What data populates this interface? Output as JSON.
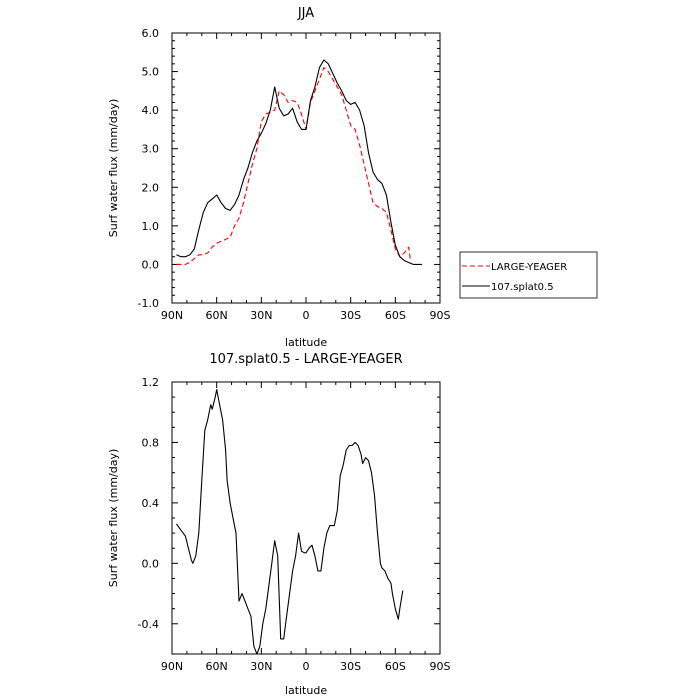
{
  "chart_data": [
    {
      "type": "line",
      "title": "JJA",
      "xlabel": "latitude",
      "ylabel": "Surf water flux (mm/day)",
      "xlim": [
        90,
        -90
      ],
      "ylim": [
        -1.0,
        6.0
      ],
      "xticks": [
        90,
        60,
        30,
        0,
        -30,
        -60,
        -90
      ],
      "xtick_labels": [
        "90N",
        "60N",
        "30N",
        "0",
        "30S",
        "60S",
        "90S"
      ],
      "yticks": [
        -1.0,
        0.0,
        1.0,
        2.0,
        3.0,
        4.0,
        5.0,
        6.0
      ],
      "ytick_labels": [
        "-1.0",
        "0.0",
        "1.0",
        "2.0",
        "3.0",
        "4.0",
        "5.0",
        "6.0"
      ],
      "legend_position": "outside-right",
      "series": [
        {
          "name": "LARGE-YEAGER",
          "color": "#ff0000",
          "dash": "dashed",
          "points": [
            [
              87,
              0.0
            ],
            [
              84,
              0.0
            ],
            [
              81,
              0.0
            ],
            [
              78,
              0.05
            ],
            [
              75,
              0.15
            ],
            [
              72,
              0.25
            ],
            [
              69,
              0.25
            ],
            [
              66,
              0.3
            ],
            [
              63,
              0.45
            ],
            [
              60,
              0.55
            ],
            [
              57,
              0.6
            ],
            [
              54,
              0.65
            ],
            [
              51,
              0.7
            ],
            [
              48,
              1.0
            ],
            [
              45,
              1.2
            ],
            [
              42,
              1.6
            ],
            [
              39,
              2.1
            ],
            [
              36,
              2.6
            ],
            [
              33,
              3.0
            ],
            [
              30,
              3.7
            ],
            [
              27,
              3.9
            ],
            [
              24,
              3.95
            ],
            [
              21,
              4.0
            ],
            [
              18,
              4.5
            ],
            [
              15,
              4.4
            ],
            [
              12,
              4.2
            ],
            [
              9,
              4.25
            ],
            [
              6,
              4.2
            ],
            [
              3,
              3.9
            ],
            [
              0,
              3.5
            ],
            [
              -3,
              4.2
            ],
            [
              -6,
              4.5
            ],
            [
              -9,
              4.8
            ],
            [
              -12,
              5.1
            ],
            [
              -15,
              5.0
            ],
            [
              -18,
              4.8
            ],
            [
              -21,
              4.6
            ],
            [
              -24,
              4.4
            ],
            [
              -27,
              4.0
            ],
            [
              -30,
              3.6
            ],
            [
              -33,
              3.5
            ],
            [
              -36,
              3.1
            ],
            [
              -39,
              2.6
            ],
            [
              -42,
              2.1
            ],
            [
              -45,
              1.6
            ],
            [
              -48,
              1.5
            ],
            [
              -51,
              1.45
            ],
            [
              -54,
              1.35
            ],
            [
              -57,
              0.9
            ],
            [
              -60,
              0.4
            ],
            [
              -63,
              0.2
            ],
            [
              -66,
              0.3
            ],
            [
              -68,
              0.4
            ],
            [
              -69,
              0.45
            ],
            [
              -70,
              0.15
            ]
          ]
        },
        {
          "name": "107.splat0.5",
          "color": "#000000",
          "dash": "solid",
          "points": [
            [
              87,
              0.25
            ],
            [
              84,
              0.2
            ],
            [
              81,
              0.2
            ],
            [
              78,
              0.25
            ],
            [
              75,
              0.4
            ],
            [
              72,
              0.9
            ],
            [
              69,
              1.35
            ],
            [
              66,
              1.6
            ],
            [
              63,
              1.7
            ],
            [
              60,
              1.8
            ],
            [
              57,
              1.6
            ],
            [
              54,
              1.45
            ],
            [
              51,
              1.4
            ],
            [
              48,
              1.55
            ],
            [
              45,
              1.8
            ],
            [
              42,
              2.2
            ],
            [
              39,
              2.5
            ],
            [
              36,
              2.9
            ],
            [
              33,
              3.2
            ],
            [
              30,
              3.4
            ],
            [
              27,
              3.65
            ],
            [
              24,
              4.0
            ],
            [
              21,
              4.6
            ],
            [
              18,
              4.05
            ],
            [
              15,
              3.85
            ],
            [
              12,
              3.9
            ],
            [
              9,
              4.05
            ],
            [
              6,
              3.7
            ],
            [
              3,
              3.5
            ],
            [
              0,
              3.5
            ],
            [
              -3,
              4.25
            ],
            [
              -6,
              4.6
            ],
            [
              -9,
              5.1
            ],
            [
              -12,
              5.3
            ],
            [
              -15,
              5.2
            ],
            [
              -18,
              4.95
            ],
            [
              -21,
              4.7
            ],
            [
              -24,
              4.5
            ],
            [
              -27,
              4.25
            ],
            [
              -30,
              4.15
            ],
            [
              -33,
              4.2
            ],
            [
              -36,
              4.0
            ],
            [
              -39,
              3.6
            ],
            [
              -42,
              2.9
            ],
            [
              -45,
              2.4
            ],
            [
              -48,
              2.2
            ],
            [
              -51,
              2.1
            ],
            [
              -54,
              1.8
            ],
            [
              -57,
              1.1
            ],
            [
              -60,
              0.5
            ],
            [
              -63,
              0.2
            ],
            [
              -66,
              0.1
            ],
            [
              -69,
              0.05
            ],
            [
              -72,
              0.0
            ],
            [
              -75,
              0.0
            ],
            [
              -78,
              0.0
            ]
          ]
        }
      ]
    },
    {
      "type": "line",
      "title": "107.splat0.5 - LARGE-YEAGER",
      "xlabel": "latitude",
      "ylabel": "Surf water flux (mm/day)",
      "xlim": [
        90,
        -90
      ],
      "ylim": [
        -0.6,
        1.2
      ],
      "xticks": [
        90,
        60,
        30,
        0,
        -30,
        -60,
        -90
      ],
      "xtick_labels": [
        "90N",
        "60N",
        "30N",
        "0",
        "30S",
        "60S",
        "90S"
      ],
      "yticks": [
        -0.4,
        0.0,
        0.4,
        0.8,
        1.2
      ],
      "ytick_labels": [
        "-0.4",
        "0.0",
        "0.4",
        "0.8",
        "1.2"
      ],
      "series": [
        {
          "name": "",
          "color": "#000000",
          "dash": "solid",
          "points": [
            [
              87,
              0.26
            ],
            [
              84,
              0.22
            ],
            [
              81,
              0.18
            ],
            [
              79,
              0.1
            ],
            [
              77,
              0.02
            ],
            [
              76,
              0.0
            ],
            [
              74,
              0.05
            ],
            [
              72,
              0.2
            ],
            [
              70,
              0.55
            ],
            [
              68,
              0.88
            ],
            [
              66,
              0.95
            ],
            [
              64,
              1.05
            ],
            [
              63,
              1.02
            ],
            [
              61,
              1.1
            ],
            [
              60,
              1.15
            ],
            [
              58,
              1.05
            ],
            [
              56,
              0.95
            ],
            [
              54,
              0.75
            ],
            [
              53,
              0.55
            ],
            [
              51,
              0.4
            ],
            [
              49,
              0.3
            ],
            [
              47,
              0.2
            ],
            [
              45,
              -0.25
            ],
            [
              43,
              -0.2
            ],
            [
              41,
              -0.25
            ],
            [
              39,
              -0.3
            ],
            [
              37,
              -0.35
            ],
            [
              35,
              -0.55
            ],
            [
              33,
              -0.6
            ],
            [
              31,
              -0.55
            ],
            [
              29,
              -0.4
            ],
            [
              27,
              -0.3
            ],
            [
              25,
              -0.15
            ],
            [
              23,
              0.0
            ],
            [
              21,
              0.15
            ],
            [
              19,
              0.05
            ],
            [
              17,
              -0.5
            ],
            [
              15,
              -0.5
            ],
            [
              13,
              -0.35
            ],
            [
              11,
              -0.2
            ],
            [
              9,
              -0.05
            ],
            [
              7,
              0.05
            ],
            [
              5,
              0.2
            ],
            [
              3,
              0.08
            ],
            [
              1,
              0.07
            ],
            [
              0,
              0.07
            ],
            [
              -2,
              0.1
            ],
            [
              -4,
              0.12
            ],
            [
              -6,
              0.05
            ],
            [
              -8,
              -0.05
            ],
            [
              -10,
              -0.05
            ],
            [
              -12,
              0.1
            ],
            [
              -14,
              0.2
            ],
            [
              -16,
              0.25
            ],
            [
              -19,
              0.25
            ],
            [
              -21,
              0.35
            ],
            [
              -23,
              0.58
            ],
            [
              -25,
              0.65
            ],
            [
              -27,
              0.75
            ],
            [
              -29,
              0.78
            ],
            [
              -31,
              0.78
            ],
            [
              -33,
              0.8
            ],
            [
              -35,
              0.78
            ],
            [
              -37,
              0.72
            ],
            [
              -38,
              0.66
            ],
            [
              -40,
              0.7
            ],
            [
              -42,
              0.68
            ],
            [
              -44,
              0.6
            ],
            [
              -46,
              0.45
            ],
            [
              -48,
              0.2
            ],
            [
              -50,
              0.0
            ],
            [
              -51,
              -0.03
            ],
            [
              -53,
              -0.05
            ],
            [
              -55,
              -0.1
            ],
            [
              -57,
              -0.13
            ],
            [
              -58,
              -0.2
            ],
            [
              -60,
              -0.3
            ],
            [
              -62,
              -0.37
            ],
            [
              -63,
              -0.3
            ],
            [
              -65,
              -0.18
            ]
          ]
        }
      ]
    }
  ]
}
